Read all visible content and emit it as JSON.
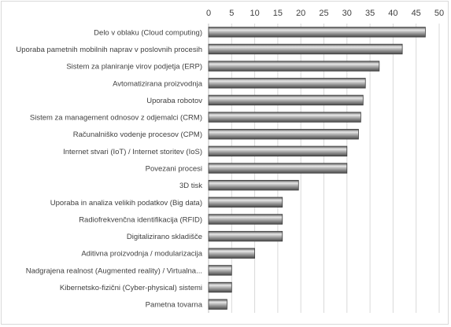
{
  "chart_data": {
    "type": "bar",
    "orientation": "horizontal",
    "title": "",
    "xlabel": "",
    "ylabel": "",
    "xlim": [
      0,
      50
    ],
    "x_ticks": [
      0,
      5,
      10,
      15,
      20,
      25,
      30,
      35,
      40,
      45,
      50
    ],
    "x_axis_position": "top",
    "grid": true,
    "legend": "none",
    "bar_color": "#8c8c8c",
    "categories": [
      "Delo v oblaku (Cloud computing)",
      "Uporaba pametnih mobilnih naprav v poslovnih procesih",
      "Sistem za planiranje virov podjetja (ERP)",
      "Avtomatizirana proizvodnja",
      "Uporaba robotov",
      "Sistem za management odnosov z odjemalci (CRM)",
      "Računalniško vodenje procesov (CPM)",
      "Internet stvari (IoT) / Internet storitev (IoS)",
      "Povezani procesi",
      "3D tisk",
      "Uporaba in analiza velikih podatkov (Big data)",
      "Radiofrekvenčna identifikacija (RFID)",
      "Digitalizirano skladišče",
      "Aditivna proizvodnja / modularizacija",
      "Nadgrajena realnost (Augmented reality) / Virtualna...",
      "Kibernetsko-fizični (Cyber-physical) sistemi",
      "Pametna tovarna"
    ],
    "values": [
      47,
      42,
      37,
      34,
      33.5,
      33,
      32.5,
      30,
      30,
      19.5,
      16,
      16,
      16,
      10,
      5,
      5,
      4
    ]
  }
}
